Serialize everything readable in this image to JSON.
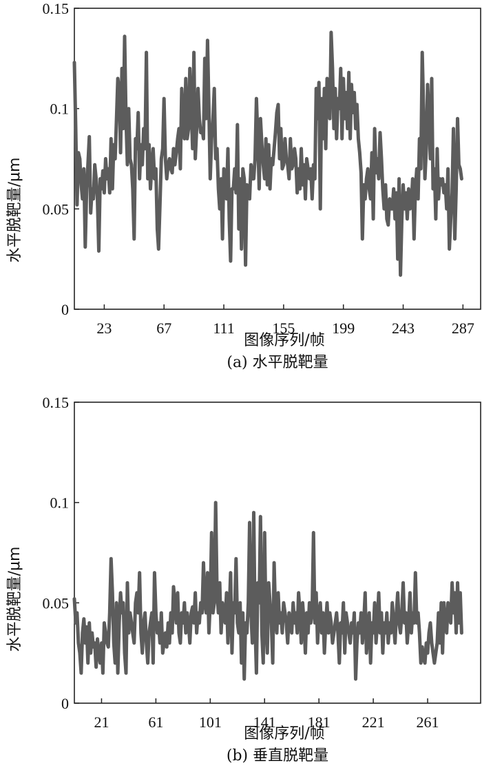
{
  "chart_data": [
    {
      "type": "line",
      "caption": "(a) 水平脱靶量",
      "xlabel": "图像序列/帧",
      "ylabel": "水平脱靶量/μm",
      "ylim": [
        0,
        0.15
      ],
      "xlim": [
        1,
        300
      ],
      "yticks": [
        "0",
        "0.05",
        "0.1",
        "0.15"
      ],
      "yticks_values": [
        0,
        0.05,
        0.1,
        0.15
      ],
      "xticks": [
        "23",
        "67",
        "111",
        "155",
        "199",
        "243",
        "287"
      ],
      "xticks_values": [
        23,
        67,
        111,
        155,
        199,
        243,
        287
      ],
      "grid": false,
      "color": "#5c5c5c",
      "x_start": 1,
      "x_step": 1,
      "values": [
        0.123,
        0.09,
        0.052,
        0.078,
        0.075,
        0.062,
        0.055,
        0.07,
        0.031,
        0.06,
        0.072,
        0.086,
        0.048,
        0.06,
        0.055,
        0.072,
        0.065,
        0.055,
        0.029,
        0.065,
        0.06,
        0.069,
        0.058,
        0.075,
        0.065,
        0.07,
        0.058,
        0.085,
        0.06,
        0.082,
        0.075,
        0.095,
        0.115,
        0.11,
        0.078,
        0.12,
        0.09,
        0.136,
        0.095,
        0.072,
        0.1,
        0.075,
        0.072,
        0.06,
        0.035,
        0.085,
        0.08,
        0.098,
        0.065,
        0.082,
        0.072,
        0.09,
        0.08,
        0.128,
        0.065,
        0.082,
        0.06,
        0.072,
        0.08,
        0.065,
        0.07,
        0.04,
        0.03,
        0.052,
        0.075,
        0.08,
        0.105,
        0.075,
        0.065,
        0.072,
        0.075,
        0.07,
        0.068,
        0.08,
        0.072,
        0.078,
        0.085,
        0.09,
        0.07,
        0.11,
        0.095,
        0.085,
        0.115,
        0.085,
        0.09,
        0.12,
        0.1,
        0.08,
        0.128,
        0.075,
        0.09,
        0.11,
        0.095,
        0.088,
        0.09,
        0.085,
        0.125,
        0.095,
        0.134,
        0.1,
        0.065,
        0.085,
        0.095,
        0.11,
        0.075,
        0.08,
        0.06,
        0.05,
        0.065,
        0.035,
        0.07,
        0.065,
        0.055,
        0.08,
        0.045,
        0.024,
        0.06,
        0.06,
        0.07,
        0.058,
        0.092,
        0.04,
        0.065,
        0.03,
        0.07,
        0.065,
        0.022,
        0.062,
        0.06,
        0.055,
        0.072,
        0.065,
        0.065,
        0.075,
        0.105,
        0.085,
        0.06,
        0.095,
        0.082,
        0.072,
        0.065,
        0.085,
        0.062,
        0.082,
        0.06,
        0.075,
        0.072,
        0.08,
        0.088,
        0.098,
        0.102,
        0.075,
        0.09,
        0.07,
        0.072,
        0.085,
        0.075,
        0.072,
        0.065,
        0.085,
        0.07,
        0.072,
        0.08,
        0.075,
        0.058,
        0.07,
        0.06,
        0.08,
        0.062,
        0.072,
        0.055,
        0.075,
        0.07,
        0.065,
        0.07,
        0.055,
        0.072,
        0.065,
        0.11,
        0.095,
        0.113,
        0.05,
        0.105,
        0.085,
        0.11,
        0.08,
        0.115,
        0.105,
        0.095,
        0.138,
        0.12,
        0.09,
        0.11,
        0.085,
        0.105,
        0.1,
        0.12,
        0.085,
        0.115,
        0.095,
        0.108,
        0.09,
        0.118,
        0.085,
        0.112,
        0.098,
        0.108,
        0.09,
        0.102,
        0.085,
        0.078,
        0.068,
        0.035,
        0.062,
        0.055,
        0.065,
        0.07,
        0.06,
        0.055,
        0.078,
        0.045,
        0.09,
        0.068,
        0.075,
        0.065,
        0.088,
        0.075,
        0.06,
        0.05,
        0.062,
        0.045,
        0.042,
        0.055,
        0.05,
        0.05,
        0.06,
        0.045,
        0.058,
        0.025,
        0.065,
        0.017,
        0.045,
        0.062,
        0.05,
        0.058,
        0.045,
        0.06,
        0.05,
        0.052,
        0.065,
        0.035,
        0.06,
        0.07,
        0.055,
        0.085,
        0.07,
        0.128,
        0.1,
        0.065,
        0.08,
        0.112,
        0.095,
        0.075,
        0.115,
        0.06,
        0.07,
        0.045,
        0.08,
        0.055,
        0.065,
        0.062,
        0.065,
        0.058,
        0.062,
        0.05,
        0.07,
        0.03,
        0.045,
        0.058,
        0.09,
        0.035,
        0.06,
        0.095,
        0.072,
        0.07,
        0.065
      ]
    },
    {
      "type": "line",
      "caption": "(b) 垂直脱靶量",
      "xlabel": "图像序列/帧",
      "ylabel": "水平脱靶量/μm",
      "ylim": [
        0,
        0.15
      ],
      "xlim": [
        1,
        300
      ],
      "yticks": [
        "0",
        "0.05",
        "0.1",
        "0.15"
      ],
      "yticks_values": [
        0,
        0.05,
        0.1,
        0.15
      ],
      "xticks": [
        "21",
        "61",
        "101",
        "141",
        "181",
        "221",
        "261"
      ],
      "xticks_values": [
        21,
        61,
        101,
        141,
        181,
        221,
        261
      ],
      "grid": false,
      "color": "#5c5c5c",
      "x_start": 1,
      "x_step": 1,
      "values": [
        0.052,
        0.04,
        0.045,
        0.03,
        0.025,
        0.015,
        0.035,
        0.042,
        0.03,
        0.038,
        0.02,
        0.04,
        0.025,
        0.035,
        0.028,
        0.03,
        0.018,
        0.032,
        0.025,
        0.02,
        0.03,
        0.015,
        0.04,
        0.035,
        0.03,
        0.028,
        0.045,
        0.072,
        0.055,
        0.03,
        0.02,
        0.05,
        0.015,
        0.04,
        0.055,
        0.045,
        0.05,
        0.025,
        0.015,
        0.06,
        0.035,
        0.045,
        0.04,
        0.035,
        0.03,
        0.05,
        0.055,
        0.045,
        0.065,
        0.035,
        0.025,
        0.04,
        0.045,
        0.03,
        0.02,
        0.035,
        0.04,
        0.045,
        0.02,
        0.065,
        0.045,
        0.035,
        0.04,
        0.03,
        0.045,
        0.025,
        0.03,
        0.035,
        0.028,
        0.04,
        0.03,
        0.045,
        0.035,
        0.058,
        0.05,
        0.04,
        0.055,
        0.035,
        0.03,
        0.045,
        0.04,
        0.05,
        0.035,
        0.045,
        0.04,
        0.03,
        0.045,
        0.048,
        0.04,
        0.055,
        0.035,
        0.045,
        0.04,
        0.05,
        0.045,
        0.07,
        0.05,
        0.045,
        0.065,
        0.035,
        0.05,
        0.085,
        0.045,
        0.05,
        0.1,
        0.055,
        0.045,
        0.06,
        0.035,
        0.05,
        0.045,
        0.04,
        0.055,
        0.03,
        0.045,
        0.065,
        0.025,
        0.05,
        0.045,
        0.072,
        0.04,
        0.035,
        0.05,
        0.02,
        0.045,
        0.012,
        0.04,
        0.035,
        0.05,
        0.09,
        0.045,
        0.03,
        0.095,
        0.04,
        0.015,
        0.06,
        0.05,
        0.093,
        0.035,
        0.02,
        0.085,
        0.04,
        0.025,
        0.06,
        0.05,
        0.04,
        0.02,
        0.07,
        0.045,
        0.035,
        0.055,
        0.04,
        0.045,
        0.035,
        0.05,
        0.045,
        0.04,
        0.03,
        0.045,
        0.04,
        0.035,
        0.05,
        0.04,
        0.045,
        0.035,
        0.055,
        0.045,
        0.03,
        0.05,
        0.04,
        0.025,
        0.045,
        0.035,
        0.05,
        0.04,
        0.045,
        0.085,
        0.04,
        0.055,
        0.03,
        0.045,
        0.05,
        0.035,
        0.045,
        0.025,
        0.04,
        0.05,
        0.035,
        0.045,
        0.04,
        0.03,
        0.035,
        0.04,
        0.045,
        0.035,
        0.02,
        0.04,
        0.035,
        0.05,
        0.025,
        0.045,
        0.04,
        0.035,
        0.03,
        0.04,
        0.035,
        0.045,
        0.012,
        0.03,
        0.04,
        0.035,
        0.045,
        0.03,
        0.04,
        0.055,
        0.025,
        0.035,
        0.045,
        0.02,
        0.04,
        0.035,
        0.05,
        0.03,
        0.04,
        0.055,
        0.035,
        0.045,
        0.025,
        0.04,
        0.035,
        0.045,
        0.03,
        0.04,
        0.035,
        0.05,
        0.04,
        0.03,
        0.045,
        0.055,
        0.04,
        0.035,
        0.045,
        0.06,
        0.04,
        0.045,
        0.03,
        0.04,
        0.055,
        0.035,
        0.045,
        0.04,
        0.065,
        0.04,
        0.045,
        0.035,
        0.02,
        0.028,
        0.022,
        0.02,
        0.03,
        0.025,
        0.035,
        0.04,
        0.03,
        0.025,
        0.02,
        0.025,
        0.03,
        0.045,
        0.03,
        0.05,
        0.025,
        0.05,
        0.04,
        0.035,
        0.05,
        0.045,
        0.04,
        0.06,
        0.045,
        0.055,
        0.035,
        0.06,
        0.04,
        0.055,
        0.035
      ]
    }
  ]
}
